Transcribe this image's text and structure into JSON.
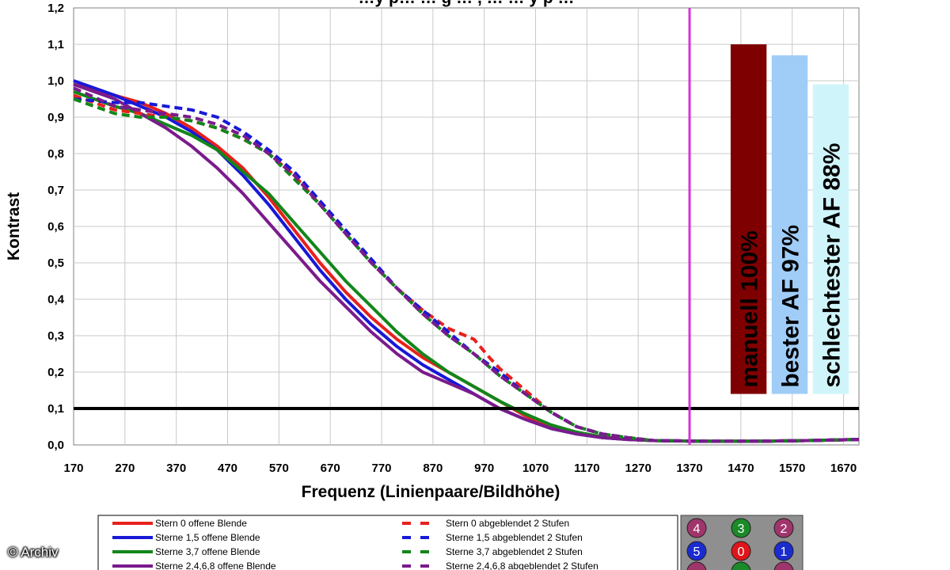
{
  "chart_data": {
    "type": "line",
    "title": "…y p… … g … , … … y p …",
    "xlabel": "Frequenz (Linienpaare/Bildhöhe)",
    "ylabel": "Kontrast",
    "xlim": [
      170,
      1700
    ],
    "ylim": [
      0,
      1.2
    ],
    "xticks": [
      "170",
      "270",
      "370",
      "470",
      "570",
      "670",
      "770",
      "870",
      "970",
      "1070",
      "1170",
      "1270",
      "1370",
      "1470",
      "1570",
      "1670"
    ],
    "yticks": [
      "0,0",
      "0,1",
      "0,2",
      "0,3",
      "0,4",
      "0,5",
      "0,6",
      "0,7",
      "0,8",
      "0,9",
      "1,0",
      "1,1",
      "1,2"
    ],
    "grid": true,
    "reference_line": {
      "y": 0.1,
      "color": "#000000"
    },
    "vertical_marker": {
      "x": 1370,
      "color": "#d633d6"
    },
    "series": [
      {
        "name": "Stern 0 offene Blende",
        "color": "#e8201c",
        "dash": false,
        "x": [
          170,
          250,
          300,
          350,
          400,
          450,
          500,
          550,
          600,
          650,
          700,
          750,
          800,
          850,
          900,
          950,
          1000,
          1050,
          1100,
          1150,
          1200,
          1250,
          1300,
          1400,
          1500,
          1600,
          1700
        ],
        "y": [
          0.99,
          0.96,
          0.94,
          0.91,
          0.87,
          0.82,
          0.76,
          0.68,
          0.59,
          0.5,
          0.42,
          0.35,
          0.29,
          0.24,
          0.2,
          0.16,
          0.12,
          0.08,
          0.05,
          0.03,
          0.02,
          0.015,
          0.012,
          0.01,
          0.01,
          0.012,
          0.015
        ]
      },
      {
        "name": "Sterne 1,5 offene Blende",
        "color": "#1818d8",
        "dash": false,
        "x": [
          170,
          250,
          300,
          350,
          400,
          450,
          500,
          550,
          600,
          650,
          700,
          750,
          800,
          850,
          900,
          950,
          1000,
          1050,
          1100,
          1150,
          1200,
          1250,
          1300,
          1400,
          1500,
          1600,
          1700
        ],
        "y": [
          1.0,
          0.96,
          0.93,
          0.9,
          0.86,
          0.81,
          0.74,
          0.66,
          0.57,
          0.48,
          0.4,
          0.33,
          0.27,
          0.22,
          0.18,
          0.14,
          0.1,
          0.07,
          0.045,
          0.03,
          0.02,
          0.015,
          0.012,
          0.01,
          0.01,
          0.012,
          0.015
        ]
      },
      {
        "name": "Sterne 3,7 offene Blende",
        "color": "#12861a",
        "dash": false,
        "x": [
          170,
          250,
          300,
          350,
          400,
          450,
          500,
          550,
          600,
          650,
          700,
          750,
          800,
          850,
          900,
          950,
          1000,
          1050,
          1100,
          1150,
          1200,
          1250,
          1300,
          1400,
          1500,
          1600,
          1700
        ],
        "y": [
          0.97,
          0.93,
          0.91,
          0.88,
          0.85,
          0.81,
          0.75,
          0.69,
          0.61,
          0.53,
          0.45,
          0.38,
          0.31,
          0.25,
          0.2,
          0.16,
          0.12,
          0.085,
          0.055,
          0.035,
          0.022,
          0.016,
          0.012,
          0.01,
          0.01,
          0.012,
          0.015
        ]
      },
      {
        "name": "Sterne 2,4,6,8 offene Blende",
        "color": "#7a1b8c",
        "dash": false,
        "x": [
          170,
          250,
          300,
          350,
          400,
          450,
          500,
          550,
          600,
          650,
          700,
          750,
          800,
          850,
          900,
          950,
          1000,
          1050,
          1100,
          1150,
          1200,
          1250,
          1300,
          1400,
          1500,
          1600,
          1700
        ],
        "y": [
          0.99,
          0.95,
          0.91,
          0.87,
          0.82,
          0.76,
          0.69,
          0.61,
          0.53,
          0.45,
          0.38,
          0.31,
          0.25,
          0.2,
          0.17,
          0.14,
          0.1,
          0.07,
          0.045,
          0.03,
          0.02,
          0.015,
          0.012,
          0.01,
          0.01,
          0.012,
          0.015
        ]
      },
      {
        "name": "Stern 0 abgeblendet 2 Stufen",
        "color": "#e8201c",
        "dash": true,
        "x": [
          170,
          250,
          300,
          350,
          400,
          450,
          500,
          550,
          600,
          650,
          700,
          750,
          800,
          850,
          900,
          950,
          980,
          1000,
          1050,
          1100,
          1150,
          1200,
          1250,
          1300,
          1400,
          1500,
          1600,
          1700
        ],
        "y": [
          0.96,
          0.92,
          0.91,
          0.9,
          0.89,
          0.87,
          0.84,
          0.8,
          0.74,
          0.66,
          0.58,
          0.5,
          0.43,
          0.37,
          0.32,
          0.29,
          0.24,
          0.21,
          0.15,
          0.09,
          0.05,
          0.03,
          0.02,
          0.012,
          0.01,
          0.01,
          0.012,
          0.015
        ]
      },
      {
        "name": "Sterne 1,5 abgeblendet 2 Stufen",
        "color": "#1818d8",
        "dash": true,
        "x": [
          170,
          250,
          300,
          350,
          400,
          450,
          500,
          550,
          600,
          650,
          700,
          750,
          800,
          850,
          900,
          950,
          1000,
          1050,
          1100,
          1150,
          1200,
          1250,
          1300,
          1400,
          1500,
          1600,
          1700
        ],
        "y": [
          0.95,
          0.94,
          0.94,
          0.93,
          0.92,
          0.9,
          0.86,
          0.81,
          0.75,
          0.67,
          0.59,
          0.51,
          0.43,
          0.37,
          0.31,
          0.25,
          0.2,
          0.14,
          0.09,
          0.05,
          0.03,
          0.02,
          0.012,
          0.01,
          0.01,
          0.012,
          0.015
        ]
      },
      {
        "name": "Sterne 3,7 abgeblendet 2 Stufen",
        "color": "#12861a",
        "dash": true,
        "x": [
          170,
          250,
          300,
          350,
          400,
          450,
          500,
          550,
          600,
          650,
          700,
          750,
          800,
          850,
          900,
          950,
          1000,
          1050,
          1100,
          1150,
          1200,
          1250,
          1300,
          1400,
          1500,
          1600,
          1700
        ],
        "y": [
          0.95,
          0.91,
          0.9,
          0.9,
          0.89,
          0.87,
          0.84,
          0.8,
          0.73,
          0.66,
          0.58,
          0.5,
          0.43,
          0.36,
          0.3,
          0.25,
          0.19,
          0.14,
          0.09,
          0.05,
          0.03,
          0.02,
          0.012,
          0.01,
          0.01,
          0.012,
          0.015
        ]
      },
      {
        "name": "Sterne 2,4,6,8 abgeblendet 2 Stufen",
        "color": "#7a1b8c",
        "dash": true,
        "x": [
          170,
          250,
          300,
          350,
          400,
          450,
          500,
          550,
          600,
          650,
          700,
          750,
          800,
          850,
          900,
          950,
          1000,
          1050,
          1100,
          1150,
          1200,
          1250,
          1300,
          1400,
          1500,
          1600,
          1700
        ],
        "y": [
          0.98,
          0.93,
          0.92,
          0.91,
          0.9,
          0.88,
          0.85,
          0.8,
          0.74,
          0.66,
          0.58,
          0.5,
          0.43,
          0.36,
          0.3,
          0.25,
          0.19,
          0.14,
          0.09,
          0.05,
          0.03,
          0.02,
          0.012,
          0.01,
          0.01,
          0.012,
          0.015
        ]
      }
    ],
    "bars": [
      {
        "label": "manuell 100%",
        "value": 1.1,
        "color": "#7f0000",
        "x_center": 1485,
        "light_text": false
      },
      {
        "label": "bester AF 97%",
        "value": 1.07,
        "color": "#9fcdf7",
        "x_center": 1565,
        "light_text": false
      },
      {
        "label": "schlechtester AF 88%",
        "value": 0.99,
        "color": "#cff5fb",
        "x_center": 1645,
        "light_text": false
      }
    ],
    "bars_base": 0.14,
    "bars_width_units": 70
  },
  "legend": {
    "left": [
      {
        "label": "Stern 0 offene Blende",
        "color": "#e8201c"
      },
      {
        "label": "Sterne 1,5 offene Blende",
        "color": "#1818d8"
      },
      {
        "label": "Sterne 3,7 offene Blende",
        "color": "#12861a"
      },
      {
        "label": "Sterne 2,4,6,8 offene Blende",
        "color": "#7a1b8c"
      }
    ],
    "right": [
      {
        "label": "Stern 0 abgeblendet 2 Stufen",
        "color": "#e8201c"
      },
      {
        "label": "Sterne 1,5 abgeblendet 2 Stufen",
        "color": "#1818d8"
      },
      {
        "label": "Sterne 3,7 abgeblendet 2 Stufen",
        "color": "#12861a"
      },
      {
        "label": "Sterne 2,4,6,8 abgeblendet 2 Stufen",
        "color": "#7a1b8c"
      }
    ]
  },
  "star_grid": {
    "rows": [
      [
        {
          "n": "4",
          "color": "#a0356c"
        },
        {
          "n": "3",
          "color": "#1b8a28"
        },
        {
          "n": "2",
          "color": "#a0356c"
        }
      ],
      [
        {
          "n": "5",
          "color": "#1a2bd0"
        },
        {
          "n": "0",
          "color": "#e0151a"
        },
        {
          "n": "1",
          "color": "#1a2bd0"
        }
      ],
      [
        {
          "n": "",
          "color": "#a0356c"
        },
        {
          "n": "",
          "color": "#1b8a28"
        },
        {
          "n": "",
          "color": "#a0356c"
        }
      ]
    ]
  },
  "copyright": "© Archiv"
}
